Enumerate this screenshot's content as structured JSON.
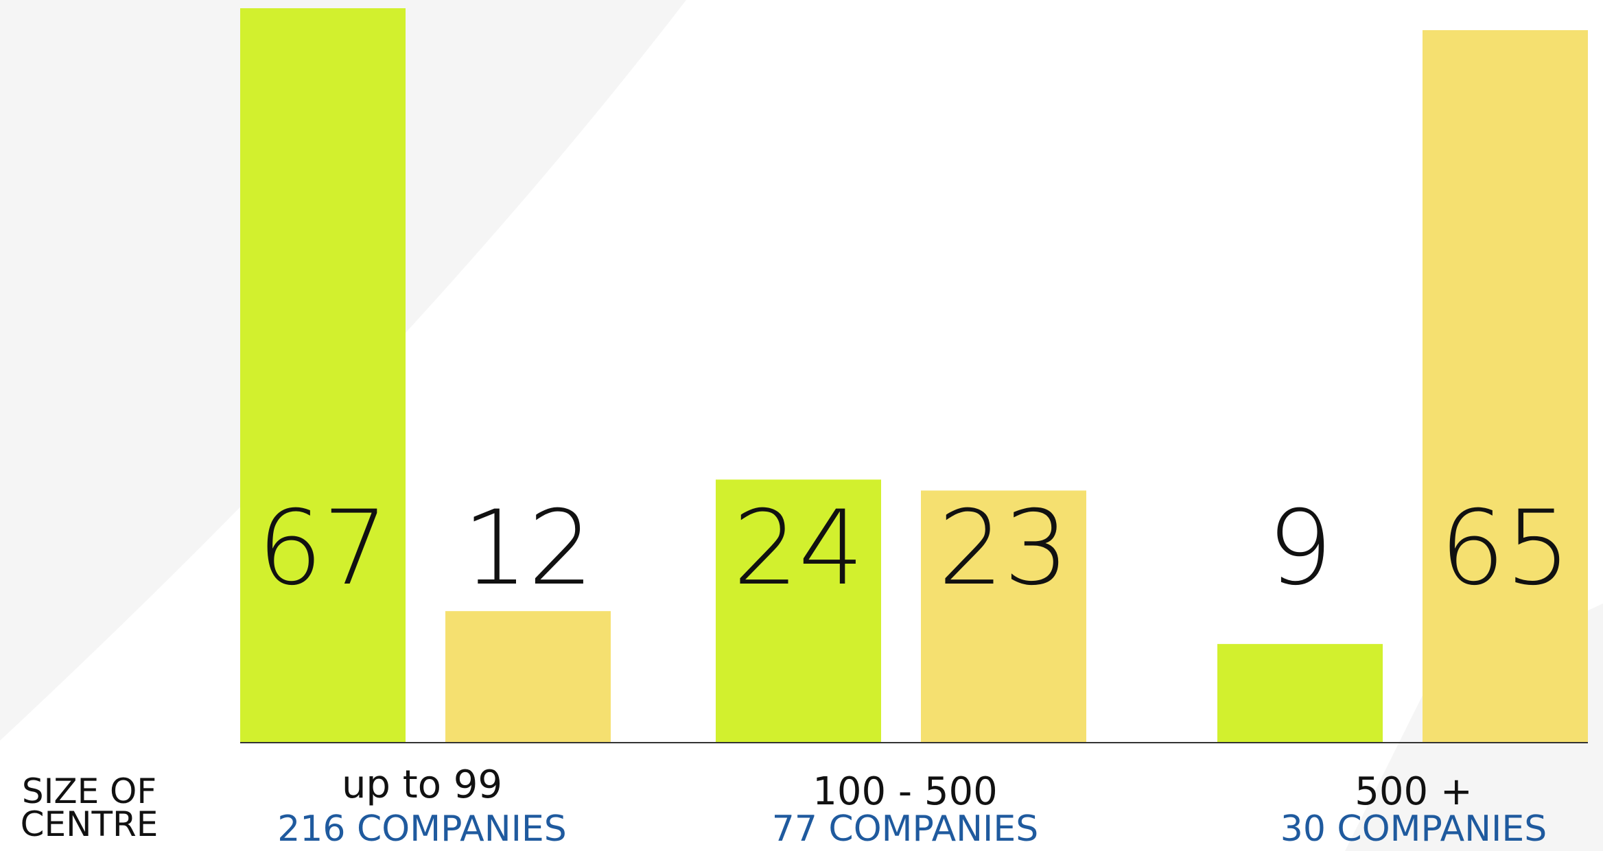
{
  "chart_data": {
    "type": "bar",
    "xlabel": "SIZE OF CENTRE",
    "categories": [
      "up to 99",
      "100 - 500",
      "500 +"
    ],
    "subcategories": [
      "216 COMPANIES",
      "77 COMPANIES",
      "30 COMPANIES"
    ],
    "series": [
      {
        "color": "#d2f02e",
        "values": [
          67,
          24,
          9
        ]
      },
      {
        "color": "#f5e070",
        "values": [
          12,
          23,
          65
        ]
      }
    ],
    "ylim": [
      0,
      67
    ]
  }
}
